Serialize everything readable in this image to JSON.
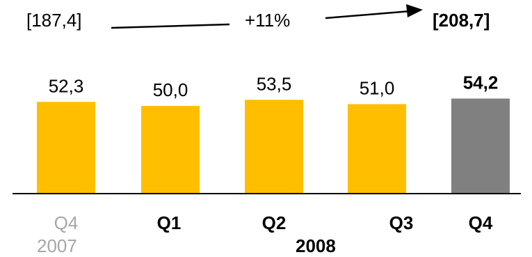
{
  "chart_data": {
    "type": "bar",
    "categories": [
      "Q4",
      "Q1",
      "Q2",
      "Q3",
      "Q4"
    ],
    "years": [
      "2007",
      "2008"
    ],
    "values": [
      52.3,
      50.0,
      53.5,
      51.0,
      54.2
    ],
    "value_labels": [
      "52,3",
      "50,0",
      "53,5",
      "51,0",
      "54,2"
    ],
    "bar_colors": [
      "#ffbf00",
      "#ffbf00",
      "#ffbf00",
      "#ffbf00",
      "#808080"
    ],
    "category_bold": [
      false,
      true,
      true,
      true,
      true
    ],
    "category_grey": [
      true,
      false,
      false,
      false,
      false
    ],
    "value_bold": [
      false,
      false,
      false,
      false,
      true
    ],
    "annotation": {
      "start_total": "[187,4]",
      "change": "+11%",
      "end_total": "[208,7]"
    },
    "ylim": [
      0,
      100
    ],
    "grid": false
  }
}
